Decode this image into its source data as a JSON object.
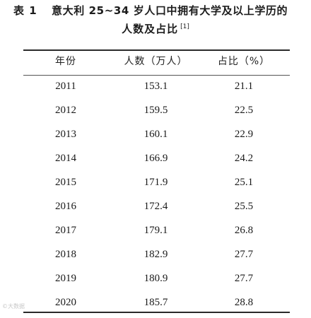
{
  "caption": {
    "label": "表 1",
    "title_line1": "意大利 25~34 岁人口中拥有大学及以上学历的",
    "title_line2": "人数及占比",
    "citation": "[1]"
  },
  "table": {
    "headers": [
      "年份",
      "人数（万人）",
      "占比（%）"
    ],
    "rows": [
      [
        "2011",
        "153.1",
        "21.1"
      ],
      [
        "2012",
        "159.5",
        "22.5"
      ],
      [
        "2013",
        "160.1",
        "22.9"
      ],
      [
        "2014",
        "166.9",
        "24.2"
      ],
      [
        "2015",
        "171.9",
        "25.1"
      ],
      [
        "2016",
        "172.4",
        "25.5"
      ],
      [
        "2017",
        "179.1",
        "26.8"
      ],
      [
        "2018",
        "182.9",
        "27.7"
      ],
      [
        "2019",
        "180.9",
        "27.7"
      ],
      [
        "2020",
        "185.7",
        "28.8"
      ]
    ]
  },
  "chart_data": {
    "type": "table",
    "columns": [
      "年份",
      "人数（万人）",
      "占比（%）"
    ],
    "x": [
      2011,
      2012,
      2013,
      2014,
      2015,
      2016,
      2017,
      2018,
      2019,
      2020
    ],
    "series": [
      {
        "name": "人数（万人）",
        "values": [
          153.1,
          159.5,
          160.1,
          166.9,
          171.9,
          172.4,
          179.1,
          182.9,
          180.9,
          185.7
        ]
      },
      {
        "name": "占比（%）",
        "values": [
          21.1,
          22.5,
          22.9,
          24.2,
          25.1,
          25.5,
          26.8,
          27.7,
          27.7,
          28.8
        ]
      }
    ]
  },
  "watermark": "©大数据"
}
